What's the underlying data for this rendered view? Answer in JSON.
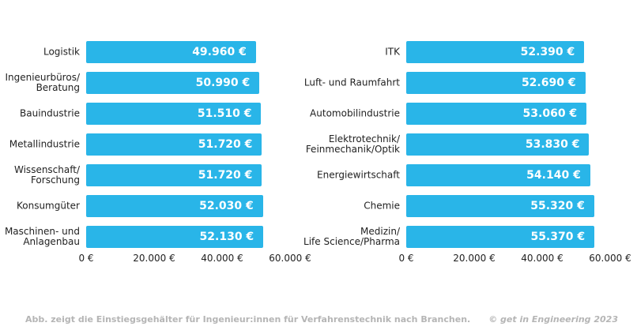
{
  "chart_data": [
    {
      "type": "bar",
      "orientation": "horizontal",
      "color": "#29b5e8",
      "categories": [
        "Logistik",
        "Ingenieurbüros/\nBeratung",
        "Bauindustrie",
        "Metallindustrie",
        "Wissenschaft/\nForschung",
        "Konsumgüter",
        "Maschinen- und\nAnlagenbau"
      ],
      "values": [
        49960,
        50990,
        51510,
        51720,
        51720,
        52030,
        52130
      ],
      "value_labels": [
        "49.960 €",
        "50.990 €",
        "51.510 €",
        "51.720 €",
        "51.720 €",
        "52.030 €",
        "52.130 €"
      ],
      "xlim": [
        0,
        60000
      ],
      "xticks": [
        {
          "value": 0,
          "label": "0 €"
        },
        {
          "value": 20000,
          "label": "20.000 €"
        },
        {
          "value": 40000,
          "label": "40.000 €"
        },
        {
          "value": 60000,
          "label": "60.000 €"
        }
      ]
    },
    {
      "type": "bar",
      "orientation": "horizontal",
      "color": "#29b5e8",
      "categories": [
        "ITK",
        "Luft- und Raumfahrt",
        "Automobilindustrie",
        "Elektrotechnik/\nFeinmechanik/Optik",
        "Energiewirtschaft",
        "Chemie",
        "Medizin/\nLife Science/Pharma"
      ],
      "values": [
        52390,
        52690,
        53060,
        53830,
        54140,
        55320,
        55370
      ],
      "value_labels": [
        "52.390 €",
        "52.690 €",
        "53.060 €",
        "53.830 €",
        "54.140 €",
        "55.320 €",
        "55.370 €"
      ],
      "xlim": [
        0,
        60000
      ],
      "xticks": [
        {
          "value": 0,
          "label": "0 €"
        },
        {
          "value": 20000,
          "label": "20.000 €"
        },
        {
          "value": 40000,
          "label": "40.000 €"
        },
        {
          "value": 60000,
          "label": "60.000 €"
        }
      ]
    }
  ],
  "footer": {
    "caption": "Abb. zeigt die Einstiegsgehälter für Ingenieur:innen für Verfahrenstechnik nach Branchen.",
    "credit": "© get in Engineering 2023"
  }
}
